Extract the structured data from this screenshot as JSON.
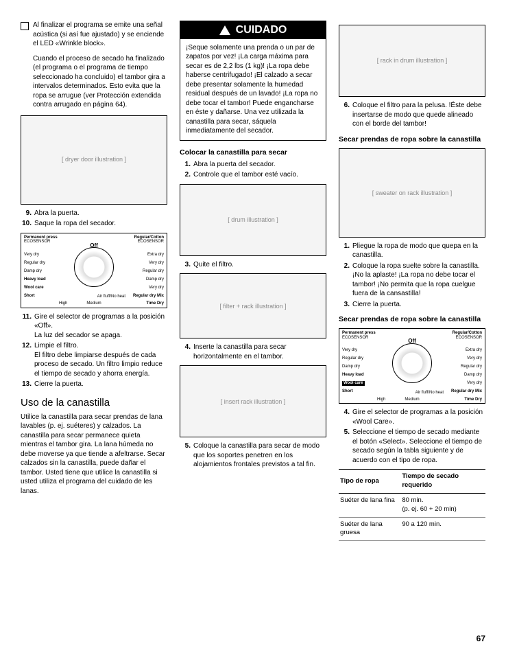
{
  "page_number": "67",
  "col1": {
    "para1": "Al finalizar el programa se emite una señal acústica (si así fue ajustado) y se enciende el LED «Wrinkle block».",
    "para2": "Cuando el proceso de secado ha finalizado (el programa o el programa de tiempo seleccionado ha concluido) el tambor gira a intervalos determinados. Esto evita que la ropa se arrugue (ver Protección extendida contra arrugado en página 64).",
    "step9_num": "9.",
    "step9": "Abra la puerta.",
    "step10_num": "10.",
    "step10": "Saque la ropa del secador.",
    "step11_num": "11.",
    "step11a": "Gire el selector de programas a la posición «Off».",
    "step11b": "La luz del secador se apaga.",
    "step12_num": "12.",
    "step12a": "Limpie el filtro.",
    "step12b": "El filtro debe limpiarse después de cada proceso de secado. Un filtro limpio reduce el tiempo de secado y ahorra energía.",
    "step13_num": "13.",
    "step13": "Cierre la puerta.",
    "h2": "Uso de la canastilla",
    "para3": "Utilice la canastilla para secar prendas de lana lavables (p. ej. suéteres) y calzados. La canastilla para secar permanece quieta mientras el tambor gira. La lana húmeda no debe moverse ya que tiende a afeltrarse. Secar calzados sin la canastilla, puede dañar el tambor. Usted tiene que utilice la canastilla si usted utiliza el programa del cuidado de les lanas."
  },
  "dial1": {
    "perm": "Permanent press",
    "eco1": "ECOSENSOR",
    "reg": "Regular/Cotton",
    "off": "Off",
    "l1": "Very dry",
    "l2": "Regular dry",
    "l3": "Damp dry",
    "l4": "Heavy load",
    "l5": "Wool care",
    "l6": "Short",
    "r1": "Extra dry",
    "r2": "Very dry",
    "r3": "Regular dry",
    "r4": "Damp dry",
    "r5": "Very dry",
    "r6": "Regular dry Mix",
    "bl": "High",
    "bm": "Medium",
    "br": "Air fluff/No heat",
    "timedry": "Time Dry"
  },
  "col2": {
    "warning_title": "CUIDADO",
    "warning_body": "¡Seque solamente una prenda o un par de zapatos por vez! ¡La carga máxima para secar es de 2,2 lbs (1 kg)! ¡La ropa debe haberse centrifugado! ¡El calzado a secar debe presentar solamente la humedad residual después de un lavado! ¡La ropa no debe tocar el tambor! Puede engancharse en éste y dañarse. Una vez utilizada la canastilla para secar, sáquela inmediatamente del secador.",
    "h3a": "Colocar la canastilla para secar",
    "s1_num": "1.",
    "s1": "Abra la puerta del secador.",
    "s2_num": "2.",
    "s2": "Controle que el tambor esté vacío.",
    "s3_num": "3.",
    "s3": "Quite el filtro.",
    "s4_num": "4.",
    "s4": "Inserte la canastilla para secar horizontalmente en el tambor.",
    "s5_num": "5.",
    "s5": "Coloque la canastilla para secar de modo que los soportes penetren en los alojamientos frontales previstos a tal fin."
  },
  "col3": {
    "s6_num": "6.",
    "s6": "Coloque el filtro para la pelusa. !Éste debe insertarse de modo que quede alineado con el borde del tambor!",
    "h3a": "Secar prendas de ropa sobre la canastilla",
    "s1_num": "1.",
    "s1": "Pliegue la ropa de modo que quepa en la canastilla.",
    "s2_num": "2.",
    "s2": "Coloque la ropa suelte sobre la canastilla. ¡No la aplaste! ¡La ropa no debe tocar el tambor! ¡No permita que la ropa cuelgue fuera de la cansastilla!",
    "s3_num": "3.",
    "s3": "Cierre la puerta.",
    "h3b": "Secar prendas de ropa sobre la canastilla",
    "s4_num": "4.",
    "s4": "Gire el selector de programas a la posición «Wool Care».",
    "s5_num": "5.",
    "s5": "Seleccione el tiempo de secado mediante el botón «Select». Seleccione el tiempo de secado según la tabla siguiente y de acuerdo con el tipo de ropa.",
    "table": {
      "th1": "Tipo de ropa",
      "th2": "Tiempo de secado requerido",
      "r1c1": "Suéter de lana fina",
      "r1c2a": "80 min.",
      "r1c2b": "(p. ej. 60 + 20 min)",
      "r2c1": "Suéter de lana gruesa",
      "r2c2": "90 a 120 min."
    }
  }
}
